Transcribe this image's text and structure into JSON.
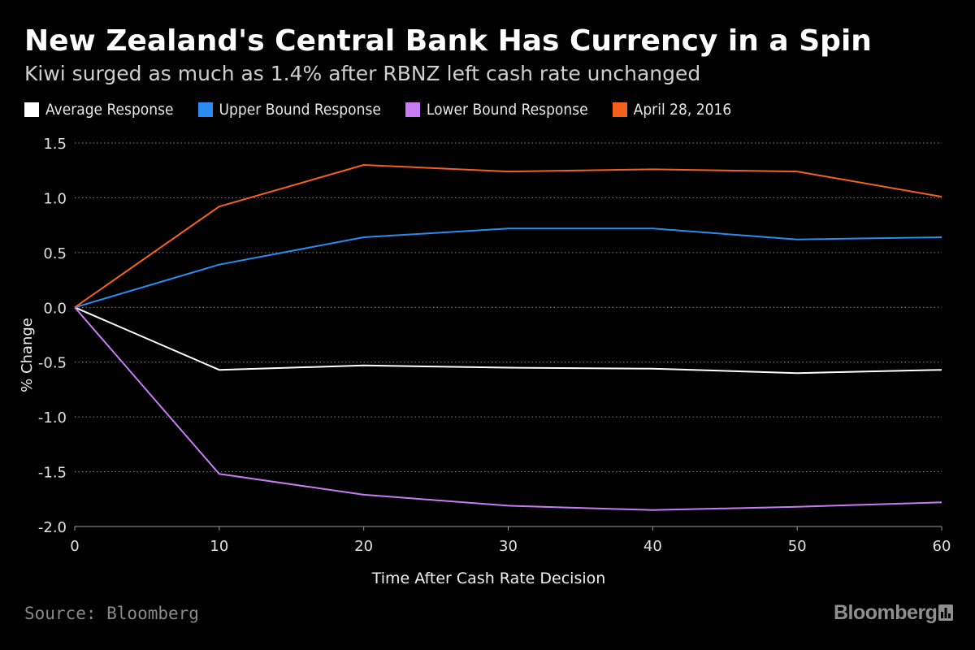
{
  "header": {
    "title": "New Zealand's Central Bank Has Currency in a Spin",
    "subtitle": "Kiwi surged as much as 1.4% after RBNZ left cash rate unchanged"
  },
  "legend": [
    {
      "label": "Average Response",
      "color": "#ffffff"
    },
    {
      "label": "Upper Bound Response",
      "color": "#2a8cf0"
    },
    {
      "label": "Lower Bound Response",
      "color": "#c77cf5"
    },
    {
      "label": "April 28, 2016",
      "color": "#f4601e"
    }
  ],
  "footer": {
    "source": "Source: Bloomberg",
    "brand": "Bloomberg",
    "brand_icon": "bloomberg-bar-chart-icon"
  },
  "chart_data": {
    "type": "line",
    "xlabel": "Time After Cash Rate Decision",
    "ylabel": "% Change",
    "x": [
      0,
      10,
      20,
      30,
      40,
      50,
      60
    ],
    "xticks": [
      "0",
      "10",
      "20",
      "30",
      "40",
      "50",
      "60"
    ],
    "yticks": [
      "1.5",
      "1.0",
      "0.5",
      "0.0",
      "-0.5",
      "-1.0",
      "-1.5",
      "-2.0"
    ],
    "xlim": [
      0,
      60
    ],
    "ylim": [
      -2.0,
      1.5
    ],
    "grid": true,
    "legend_position": "top",
    "series": [
      {
        "name": "Average Response",
        "color": "#ffffff",
        "values": [
          0.0,
          -0.57,
          -0.53,
          -0.55,
          -0.56,
          -0.6,
          -0.57
        ]
      },
      {
        "name": "Upper Bound Response",
        "color": "#2a8cf0",
        "values": [
          0.0,
          0.39,
          0.64,
          0.72,
          0.72,
          0.62,
          0.64
        ]
      },
      {
        "name": "Lower Bound Response",
        "color": "#c77cf5",
        "values": [
          0.0,
          -1.52,
          -1.71,
          -1.81,
          -1.85,
          -1.82,
          -1.78
        ]
      },
      {
        "name": "April 28, 2016",
        "color": "#f4601e",
        "values": [
          0.0,
          0.92,
          1.3,
          1.24,
          1.26,
          1.24,
          1.01
        ]
      }
    ]
  }
}
